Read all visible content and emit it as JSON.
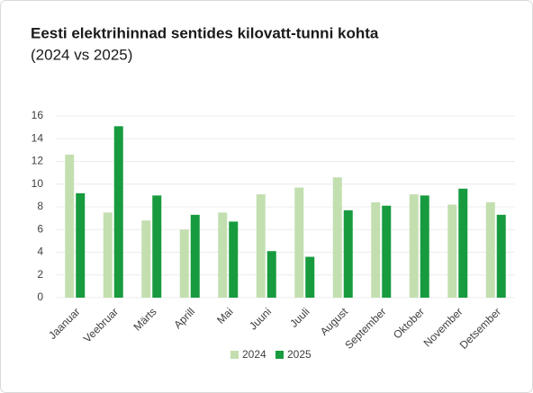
{
  "chart_data": {
    "type": "bar",
    "title": "Eesti elektrihinnad sentides kilovatt-tunni kohta",
    "subtitle": "(2024 vs 2025)",
    "categories": [
      "Jaanuar",
      "Veebruar",
      "Märts",
      "Aprill",
      "Mai",
      "Juuni",
      "Juuli",
      "August",
      "September",
      "Oktober",
      "November",
      "Detsember"
    ],
    "series": [
      {
        "name": "2024",
        "color": "#c3dfb0",
        "values": [
          12.6,
          7.5,
          6.8,
          6.0,
          7.5,
          9.1,
          9.7,
          10.6,
          8.4,
          9.1,
          8.2,
          8.4
        ]
      },
      {
        "name": "2025",
        "color": "#179b3e",
        "values": [
          9.2,
          15.1,
          9.0,
          7.3,
          6.7,
          4.1,
          3.6,
          7.7,
          8.1,
          9.0,
          9.6,
          7.3
        ]
      }
    ],
    "ylim": [
      0,
      16
    ],
    "yticks": [
      0,
      2,
      4,
      6,
      8,
      10,
      12,
      14,
      16
    ],
    "grid": true,
    "legend": "bottom"
  }
}
